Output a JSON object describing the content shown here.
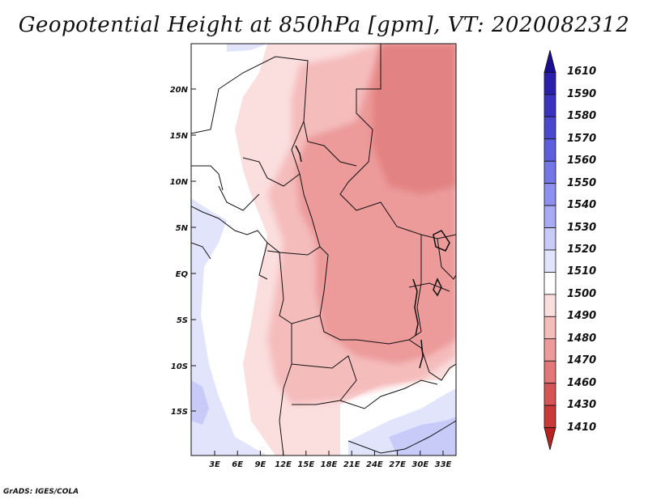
{
  "title": "Geopotential Height at 850hPa [gpm], VT: 2020082312",
  "credit": "GrADS: IGES/COLA",
  "lat_ticks": [
    "20N",
    "15N",
    "10N",
    "5N",
    "EQ",
    "5S",
    "10S",
    "15S"
  ],
  "lon_ticks": [
    "3E",
    "6E",
    "9E",
    "12E",
    "15E",
    "18E",
    "21E",
    "24E",
    "27E",
    "30E",
    "33E"
  ],
  "colorbar": {
    "labels": [
      "1610",
      "1590",
      "1580",
      "1570",
      "1560",
      "1550",
      "1540",
      "1530",
      "1520",
      "1510",
      "1500",
      "1490",
      "1480",
      "1470",
      "1460",
      "1430",
      "1410"
    ],
    "colors": [
      "#1a0f8c",
      "#2a1fa8",
      "#3a33bd",
      "#4a48cc",
      "#5d5ed9",
      "#7476e3",
      "#8d90ec",
      "#a8abf3",
      "#c8cbf8",
      "#e2e4fc",
      "#ffffff",
      "#fbdede",
      "#f5bcbc",
      "#ec9a9a",
      "#e07878",
      "#d45555",
      "#c83a3a",
      "#b82222"
    ]
  }
}
